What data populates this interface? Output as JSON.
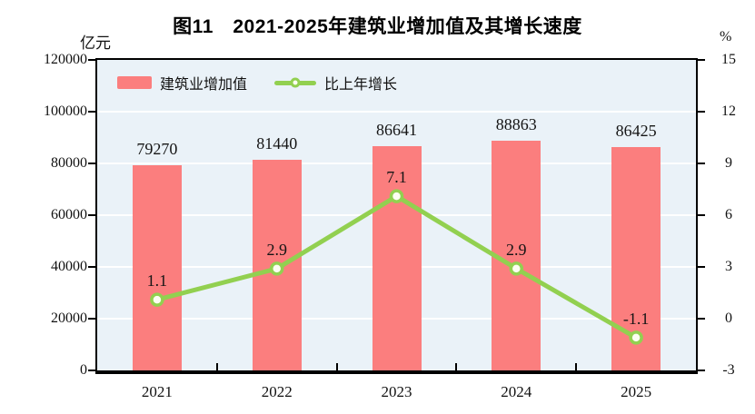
{
  "title": "图11　2021-2025年建筑业增加值及其增长速度",
  "units": {
    "left": "亿元",
    "right": "%"
  },
  "legend": {
    "bar_label": "建筑业增加值",
    "line_label": "比上年增长"
  },
  "colors": {
    "bar": "#fb7e7e",
    "line": "#92d050",
    "marker_fill": "#fcfef2",
    "plot_bg": "#eaf2f8",
    "grid": "#ffffff",
    "axis": "#000000",
    "text": "#111111"
  },
  "chart_data": {
    "type": "combo-bar-line",
    "title": "图11　2021-2025年建筑业增加值及其增长速度",
    "categories": [
      "2021",
      "2022",
      "2023",
      "2024",
      "2025"
    ],
    "series": [
      {
        "name": "建筑业增加值",
        "type": "bar",
        "axis": "left",
        "values": [
          79270,
          81440,
          86641,
          88863,
          86425
        ],
        "labels": [
          "79270",
          "81440",
          "86641",
          "88863",
          "86425"
        ]
      },
      {
        "name": "比上年增长",
        "type": "line",
        "axis": "right",
        "values": [
          1.1,
          2.9,
          7.1,
          2.9,
          -1.1
        ],
        "labels": [
          "1.1",
          "2.9",
          "7.1",
          "2.9",
          "-1.1"
        ]
      }
    ],
    "left_axis": {
      "title": "亿元",
      "min": 0,
      "max": 120000,
      "step": 20000,
      "tick_labels": [
        "0",
        "20000",
        "40000",
        "60000",
        "80000",
        "100000",
        "120000"
      ]
    },
    "right_axis": {
      "title": "%",
      "min": -3,
      "max": 15,
      "step": 3,
      "tick_labels": [
        "-3",
        "0",
        "3",
        "6",
        "9",
        "12",
        "15"
      ]
    },
    "grid": "horizontal",
    "legend_position": "top-left-inside"
  }
}
